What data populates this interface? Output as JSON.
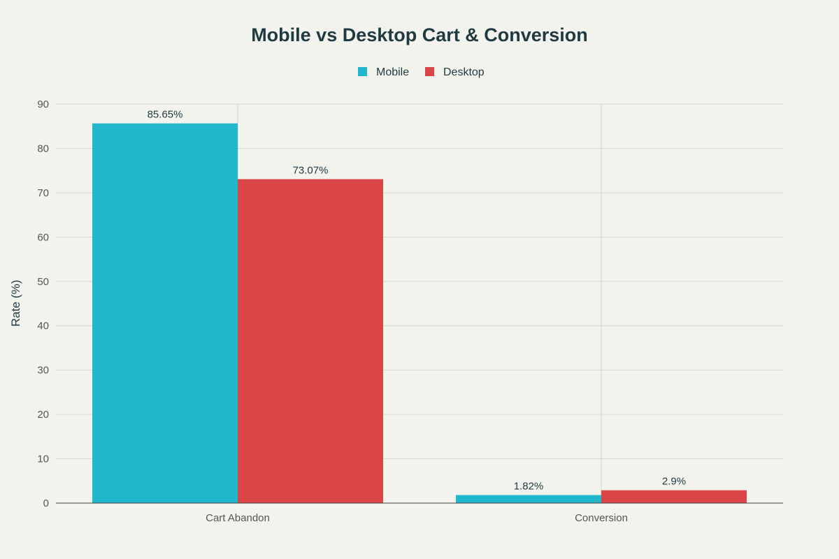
{
  "chart_data": {
    "type": "bar",
    "title": "Mobile vs Desktop Cart & Conversion",
    "categories": [
      "Cart Abandon",
      "Conversion"
    ],
    "series": [
      {
        "name": "Mobile",
        "color": "#21b8cd",
        "values": [
          85.65,
          1.82
        ],
        "labels": [
          "85.65%",
          "1.82%"
        ]
      },
      {
        "name": "Desktop",
        "color": "#db4545",
        "values": [
          73.07,
          2.9
        ],
        "labels": [
          "73.07%",
          "2.9%"
        ]
      }
    ],
    "xlabel": "",
    "ylabel": "Rate (%)",
    "ylim": [
      0,
      90
    ],
    "yticks": [
      0,
      10,
      20,
      30,
      40,
      50,
      60,
      70,
      80,
      90
    ],
    "grid": true,
    "legend": "top-center"
  }
}
